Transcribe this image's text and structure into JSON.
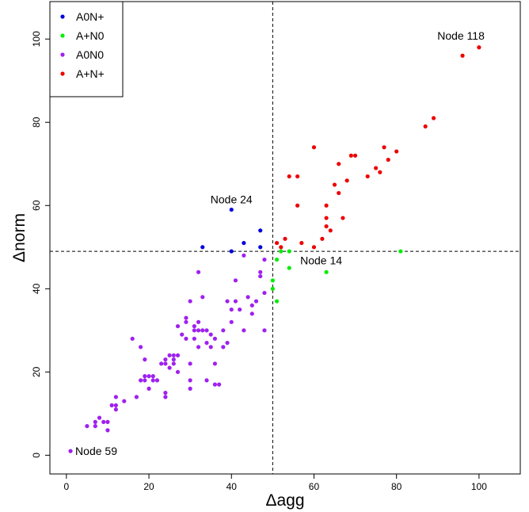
{
  "chart_data": {
    "type": "scatter",
    "xlabel": "Δagg",
    "ylabel": "Δnorm",
    "xlim": [
      -4,
      110
    ],
    "ylim": [
      -4.5,
      109
    ],
    "x_ticks": [
      0,
      20,
      40,
      60,
      80,
      100
    ],
    "y_ticks": [
      0,
      20,
      40,
      60,
      80,
      100
    ],
    "x_tick_labels": [
      "0",
      "20",
      "40",
      "60",
      "80",
      "100"
    ],
    "y_tick_labels": [
      "0",
      "20",
      "40",
      "60",
      "80",
      "100"
    ],
    "grid": false,
    "legend_position": "top-left",
    "reference_lines": {
      "vertical_x": 50,
      "horizontal_y": 49
    },
    "series": [
      {
        "name": "A0N+",
        "color": "#0000dd",
        "points": [
          [
            33,
            50
          ],
          [
            40,
            49
          ],
          [
            40,
            59
          ],
          [
            43,
            51
          ],
          [
            47,
            54
          ],
          [
            47,
            50
          ]
        ]
      },
      {
        "name": "A+N0",
        "color": "#00ee00",
        "points": [
          [
            50,
            42
          ],
          [
            50,
            40
          ],
          [
            51,
            47
          ],
          [
            51,
            37
          ],
          [
            52,
            49
          ],
          [
            54,
            49
          ],
          [
            54,
            45
          ],
          [
            63,
            44
          ],
          [
            81,
            49
          ]
        ]
      },
      {
        "name": "A0N0",
        "color": "#a020f0",
        "points": [
          [
            1,
            1
          ],
          [
            5,
            7
          ],
          [
            7,
            8
          ],
          [
            7,
            7
          ],
          [
            8,
            9
          ],
          [
            9,
            8
          ],
          [
            10,
            8
          ],
          [
            10,
            6
          ],
          [
            11,
            12
          ],
          [
            12,
            12
          ],
          [
            12,
            11
          ],
          [
            12,
            14
          ],
          [
            14,
            13
          ],
          [
            16,
            28
          ],
          [
            17,
            14
          ],
          [
            18,
            18
          ],
          [
            18,
            26
          ],
          [
            19,
            18
          ],
          [
            19,
            23
          ],
          [
            19,
            19
          ],
          [
            20,
            19
          ],
          [
            20,
            16
          ],
          [
            21,
            18
          ],
          [
            21,
            19
          ],
          [
            22,
            18
          ],
          [
            23,
            22
          ],
          [
            24,
            15
          ],
          [
            24,
            14
          ],
          [
            24,
            23
          ],
          [
            24,
            22
          ],
          [
            25,
            24
          ],
          [
            25,
            21
          ],
          [
            26,
            24
          ],
          [
            26,
            23
          ],
          [
            26,
            22
          ],
          [
            27,
            24
          ],
          [
            27,
            20
          ],
          [
            27,
            31
          ],
          [
            28,
            29
          ],
          [
            29,
            33
          ],
          [
            29,
            32
          ],
          [
            29,
            28
          ],
          [
            30,
            37
          ],
          [
            30,
            22
          ],
          [
            30,
            18
          ],
          [
            30,
            16
          ],
          [
            31,
            31
          ],
          [
            31,
            30
          ],
          [
            31,
            28
          ],
          [
            32,
            44
          ],
          [
            32,
            32
          ],
          [
            32,
            30
          ],
          [
            32,
            26
          ],
          [
            33,
            38
          ],
          [
            33,
            30
          ],
          [
            34,
            30
          ],
          [
            34,
            27
          ],
          [
            34,
            18
          ],
          [
            35,
            29
          ],
          [
            35,
            26
          ],
          [
            36,
            28
          ],
          [
            36,
            17
          ],
          [
            36,
            22
          ],
          [
            37,
            17
          ],
          [
            38,
            26
          ],
          [
            38,
            30
          ],
          [
            39,
            37
          ],
          [
            39,
            27
          ],
          [
            40,
            32
          ],
          [
            40,
            35
          ],
          [
            41,
            42
          ],
          [
            41,
            37
          ],
          [
            42,
            35
          ],
          [
            43,
            48
          ],
          [
            43,
            30
          ],
          [
            44,
            38
          ],
          [
            45,
            34
          ],
          [
            45,
            36
          ],
          [
            46,
            37
          ],
          [
            47,
            43
          ],
          [
            47,
            44
          ],
          [
            48,
            47
          ],
          [
            48,
            39
          ],
          [
            48,
            30
          ]
        ]
      },
      {
        "name": "A+N+",
        "color": "#ee0000",
        "points": [
          [
            51,
            51
          ],
          [
            52,
            50
          ],
          [
            53,
            52
          ],
          [
            54,
            67
          ],
          [
            56,
            67
          ],
          [
            56,
            60
          ],
          [
            57,
            51
          ],
          [
            60,
            50
          ],
          [
            60,
            74
          ],
          [
            62,
            52
          ],
          [
            63,
            55
          ],
          [
            63,
            57
          ],
          [
            63,
            60
          ],
          [
            64,
            54
          ],
          [
            65,
            65
          ],
          [
            66,
            63
          ],
          [
            66,
            70
          ],
          [
            67,
            57
          ],
          [
            68,
            66
          ],
          [
            69,
            72
          ],
          [
            70,
            72
          ],
          [
            73,
            67
          ],
          [
            75,
            69
          ],
          [
            76,
            68
          ],
          [
            77,
            74
          ],
          [
            78,
            71
          ],
          [
            80,
            73
          ],
          [
            87,
            79
          ],
          [
            89,
            81
          ],
          [
            96,
            96
          ],
          [
            100,
            98
          ]
        ]
      }
    ],
    "annotations": [
      {
        "text": "Node 118",
        "x": 100,
        "y": 98,
        "anchor": "end",
        "dx": 7,
        "dy": -10
      },
      {
        "text": "Node 24",
        "x": 40,
        "y": 59,
        "anchor": "middle",
        "dx": 0,
        "dy": -8
      },
      {
        "text": "Node 14",
        "x": 63,
        "y": 44,
        "anchor": "start",
        "dx": -33,
        "dy": -10
      },
      {
        "text": "Node 59",
        "x": 1,
        "y": 1,
        "anchor": "start",
        "dx": 6,
        "dy": 5
      }
    ]
  }
}
